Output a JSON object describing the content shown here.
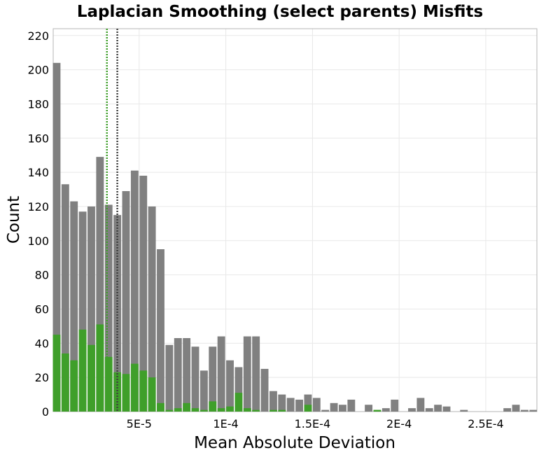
{
  "chart_data": {
    "type": "bar",
    "title": "Laplacian Smoothing (select parents) Misfits",
    "xlabel": "Mean Absolute Deviation",
    "ylabel": "Count",
    "xlim": [
      4e-07,
      0.0002795
    ],
    "ylim": [
      0,
      224
    ],
    "bin_width": 5e-06,
    "grid": true,
    "x_ticks": [
      {
        "value": 5e-05,
        "label": "5E-5"
      },
      {
        "value": 0.0001,
        "label": "1E-4"
      },
      {
        "value": 0.00015,
        "label": "1.5E-4"
      },
      {
        "value": 0.0002,
        "label": "2E-4"
      },
      {
        "value": 0.00025,
        "label": "2.5E-4"
      }
    ],
    "y_ticks": [
      0,
      20,
      40,
      60,
      80,
      100,
      120,
      140,
      160,
      180,
      200,
      220
    ],
    "bin_centers": [
      2.4e-06,
      7.4e-06,
      1.24e-05,
      1.74e-05,
      2.24e-05,
      2.74e-05,
      3.24e-05,
      3.74e-05,
      4.24e-05,
      4.74e-05,
      5.24e-05,
      5.74e-05,
      6.24e-05,
      6.74e-05,
      7.24e-05,
      7.74e-05,
      8.24e-05,
      8.74e-05,
      9.24e-05,
      9.74e-05,
      0.0001024,
      0.0001074,
      0.0001124,
      0.0001174,
      0.0001224,
      0.0001274,
      0.0001324,
      0.0001374,
      0.0001424,
      0.0001474,
      0.0001524,
      0.0001574,
      0.0001624,
      0.0001674,
      0.0001724,
      0.0001774,
      0.0001824,
      0.0001874,
      0.0001924,
      0.0001974,
      0.0002024,
      0.0002074,
      0.0002124,
      0.0002174,
      0.0002224,
      0.0002274,
      0.0002324,
      0.0002374,
      0.0002424,
      0.0002474,
      0.0002524,
      0.0002574,
      0.0002624,
      0.0002674,
      0.0002724,
      0.0002774
    ],
    "series": [
      {
        "color": "#808080",
        "values": [
          204,
          133,
          123,
          117,
          120,
          149,
          121,
          115,
          129,
          141,
          138,
          120,
          95,
          39,
          43,
          43,
          38,
          24,
          38,
          44,
          30,
          26,
          44,
          44,
          25,
          12,
          10,
          8,
          7,
          10,
          8,
          1,
          5,
          4,
          7,
          0,
          4,
          1,
          2,
          7,
          0,
          2,
          8,
          2,
          4,
          3,
          0,
          1,
          0,
          0,
          0,
          0,
          2,
          4,
          1,
          1
        ]
      },
      {
        "color": "#3f9f2a",
        "values": [
          45,
          34,
          30,
          48,
          39,
          51,
          32,
          23,
          22,
          28,
          24,
          20,
          5,
          1,
          2,
          5,
          2,
          1,
          6,
          2,
          3,
          11,
          2,
          1,
          0,
          1,
          1,
          0,
          0,
          4,
          0,
          0,
          0,
          0,
          0,
          0,
          0,
          1,
          0,
          0,
          0,
          0,
          0,
          0,
          0,
          0,
          0,
          0,
          0,
          0,
          0,
          0,
          0,
          0,
          0,
          0
        ]
      }
    ],
    "reference_lines": [
      {
        "x": 3.14e-05,
        "color": "#3f9f2a",
        "style": "dotted"
      },
      {
        "x": 3.74e-05,
        "color": "#404040",
        "style": "dotted"
      }
    ]
  }
}
